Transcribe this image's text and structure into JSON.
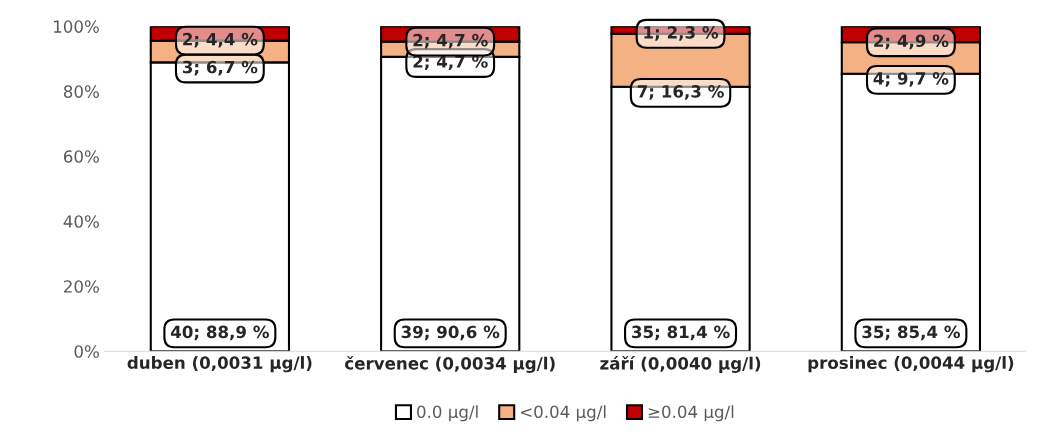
{
  "chart_data": {
    "type": "bar",
    "stacked": true,
    "categories": [
      "duben (0,0031 µg/l)",
      "červenec (0,0034 µg/l)",
      "září (0,0040 µg/l)",
      "prosinec (0,0044 µg/l)"
    ],
    "series": [
      {
        "name": "0.0 µg/l",
        "color": "#ffffff",
        "values": [
          88.9,
          90.6,
          81.4,
          85.4
        ],
        "value_labels": [
          "40; 88,9 %",
          "39; 90,6 %",
          "35; 81,4 %",
          "35; 85,4 %"
        ]
      },
      {
        "name": "<0.04 µg/l",
        "color": "#f4b183",
        "values": [
          6.7,
          4.7,
          16.3,
          9.7
        ],
        "value_labels": [
          "3; 6,7 %",
          "2; 4,7 %",
          "7; 16,3 %",
          "4; 9,7 %"
        ]
      },
      {
        "name": "≥0.04 µg/l",
        "color": "#c00000",
        "values": [
          4.4,
          4.7,
          2.3,
          4.9
        ],
        "value_labels": [
          "2; 4,4 %",
          "2; 4,7 %",
          "1; 2,3 %",
          "2; 4,9 %"
        ]
      }
    ],
    "ylim": [
      0,
      100
    ],
    "yticks": [
      {
        "value": 0,
        "label": "0%"
      },
      {
        "value": 20,
        "label": "20%"
      },
      {
        "value": 40,
        "label": "40%"
      },
      {
        "value": 60,
        "label": "60%"
      },
      {
        "value": 80,
        "label": "80%"
      },
      {
        "value": 100,
        "label": "100%"
      }
    ],
    "grid": false,
    "legend": "bottom"
  }
}
